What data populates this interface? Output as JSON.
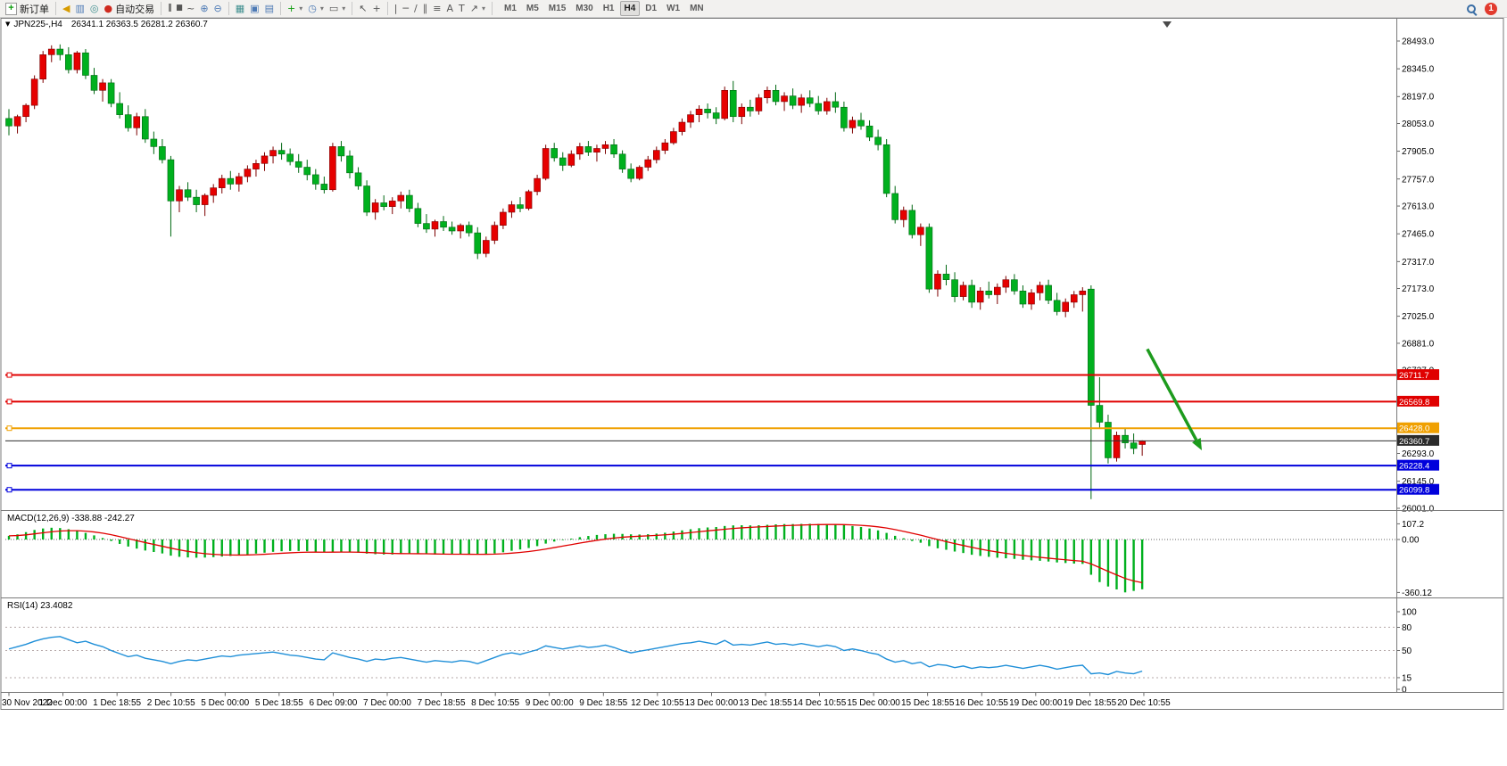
{
  "toolbar": {
    "new_order_label": "新订单",
    "auto_trading_label": "自动交易",
    "timeframes": [
      "M1",
      "M5",
      "M15",
      "M30",
      "H1",
      "H4",
      "D1",
      "W1",
      "MN"
    ],
    "active_timeframe": "H4",
    "notification_count": "1"
  },
  "icons": {
    "symbol_marker": "▼",
    "plus": "+",
    "speaker": "◀",
    "monitor": "▥",
    "headset": "◎",
    "autotrade_dot": "●",
    "bars": "|||",
    "candlesticks": "▮▮",
    "line_chart": "~",
    "zoom_in": "⊕",
    "zoom_out": "⊖",
    "tiles": "▦",
    "window": "▣",
    "window2": "▤",
    "indicator_plus": "+",
    "clock": "◷",
    "template": "▭",
    "cursor": "↖",
    "crosshair": "+",
    "vline": "|",
    "hline": "─",
    "trendline": "/",
    "channel": "∥",
    "fibonacci": "≡",
    "text": "A",
    "label": "T",
    "arrow_tool": "↗",
    "dropdown": "▾"
  },
  "chart": {
    "symbol_period": "JPN225-,H4",
    "ohlc": "26341.1 26363.5 26281.2 26360.7"
  },
  "indicators": {
    "macd": "MACD(12,26,9) -338.88 -242.27",
    "rsi": "RSI(14) 23.4082"
  },
  "chart_data": {
    "type": "candlestick",
    "symbol": "JPN225-",
    "timeframe": "H4",
    "last_ohlc": {
      "open": 26341.1,
      "high": 26363.5,
      "low": 26281.2,
      "close": 26360.7
    },
    "price_axis": {
      "max": 28493.0,
      "min": 26001.0,
      "ticks": [
        "28493.0",
        "28345.0",
        "28197.0",
        "28053.0",
        "27905.0",
        "27757.0",
        "27613.0",
        "27465.0",
        "27317.0",
        "27173.0",
        "27025.0",
        "26881.0",
        "26737.0",
        "26293.0",
        "26145.0",
        "26001.0"
      ]
    },
    "time_labels": [
      "30 Nov 2022",
      "1 Dec 00:00",
      "1 Dec 18:55",
      "2 Dec 10:55",
      "5 Dec 00:00",
      "5 Dec 18:55",
      "6 Dec 09:00",
      "7 Dec 00:00",
      "7 Dec 18:55",
      "8 Dec 10:55",
      "9 Dec 00:00",
      "9 Dec 18:55",
      "12 Dec 10:55",
      "13 Dec 00:00",
      "13 Dec 18:55",
      "14 Dec 10:55",
      "15 Dec 00:00",
      "15 Dec 18:55",
      "16 Dec 10:55",
      "19 Dec 00:00",
      "19 Dec 18:55",
      "20 Dec 10:55"
    ],
    "colors": {
      "up": "#e60000",
      "up_dark": "#7d0000",
      "down": "#00b01e",
      "down_dark": "#006812"
    },
    "candles": [
      [
        28080,
        28130,
        27990,
        28040
      ],
      [
        28040,
        28100,
        28000,
        28090
      ],
      [
        28090,
        28160,
        28060,
        28150
      ],
      [
        28150,
        28310,
        28130,
        28290
      ],
      [
        28290,
        28440,
        28270,
        28420
      ],
      [
        28420,
        28470,
        28380,
        28450
      ],
      [
        28450,
        28475,
        28390,
        28420
      ],
      [
        28420,
        28460,
        28320,
        28340
      ],
      [
        28340,
        28440,
        28320,
        28430
      ],
      [
        28430,
        28450,
        28290,
        28310
      ],
      [
        28310,
        28350,
        28210,
        28230
      ],
      [
        28230,
        28290,
        28170,
        28270
      ],
      [
        28270,
        28290,
        28140,
        28160
      ],
      [
        28160,
        28220,
        28080,
        28100
      ],
      [
        28100,
        28150,
        28010,
        28030
      ],
      [
        28030,
        28110,
        27990,
        28090
      ],
      [
        28090,
        28130,
        27950,
        27970
      ],
      [
        27970,
        28010,
        27890,
        27930
      ],
      [
        27930,
        27970,
        27840,
        27860
      ],
      [
        27860,
        27880,
        27450,
        27640
      ],
      [
        27640,
        27720,
        27580,
        27700
      ],
      [
        27700,
        27740,
        27640,
        27660
      ],
      [
        27660,
        27700,
        27580,
        27620
      ],
      [
        27620,
        27680,
        27560,
        27670
      ],
      [
        27670,
        27730,
        27630,
        27710
      ],
      [
        27710,
        27780,
        27680,
        27760
      ],
      [
        27760,
        27800,
        27700,
        27730
      ],
      [
        27730,
        27790,
        27690,
        27770
      ],
      [
        27770,
        27830,
        27740,
        27810
      ],
      [
        27810,
        27860,
        27770,
        27840
      ],
      [
        27840,
        27900,
        27800,
        27880
      ],
      [
        27880,
        27930,
        27840,
        27910
      ],
      [
        27910,
        27950,
        27860,
        27890
      ],
      [
        27890,
        27920,
        27830,
        27850
      ],
      [
        27850,
        27890,
        27790,
        27820
      ],
      [
        27820,
        27860,
        27750,
        27780
      ],
      [
        27780,
        27810,
        27700,
        27730
      ],
      [
        27730,
        27770,
        27680,
        27700
      ],
      [
        27700,
        27950,
        27690,
        27930
      ],
      [
        27930,
        27960,
        27850,
        27880
      ],
      [
        27880,
        27910,
        27760,
        27790
      ],
      [
        27790,
        27820,
        27700,
        27720
      ],
      [
        27720,
        27750,
        27560,
        27580
      ],
      [
        27580,
        27650,
        27540,
        27630
      ],
      [
        27630,
        27670,
        27590,
        27610
      ],
      [
        27610,
        27660,
        27570,
        27640
      ],
      [
        27640,
        27690,
        27600,
        27670
      ],
      [
        27670,
        27700,
        27580,
        27600
      ],
      [
        27600,
        27630,
        27500,
        27520
      ],
      [
        27520,
        27570,
        27470,
        27490
      ],
      [
        27490,
        27540,
        27450,
        27530
      ],
      [
        27530,
        27560,
        27480,
        27500
      ],
      [
        27500,
        27530,
        27460,
        27480
      ],
      [
        27480,
        27520,
        27440,
        27510
      ],
      [
        27510,
        27530,
        27450,
        27470
      ],
      [
        27470,
        27500,
        27330,
        27360
      ],
      [
        27360,
        27450,
        27340,
        27430
      ],
      [
        27430,
        27530,
        27410,
        27510
      ],
      [
        27510,
        27600,
        27490,
        27580
      ],
      [
        27580,
        27640,
        27550,
        27620
      ],
      [
        27620,
        27660,
        27580,
        27600
      ],
      [
        27600,
        27700,
        27590,
        27690
      ],
      [
        27690,
        27780,
        27670,
        27760
      ],
      [
        27760,
        27940,
        27750,
        27920
      ],
      [
        27920,
        27950,
        27850,
        27870
      ],
      [
        27870,
        27900,
        27800,
        27830
      ],
      [
        27830,
        27910,
        27820,
        27890
      ],
      [
        27890,
        27950,
        27860,
        27930
      ],
      [
        27930,
        27960,
        27880,
        27900
      ],
      [
        27900,
        27940,
        27850,
        27920
      ],
      [
        27920,
        27960,
        27890,
        27940
      ],
      [
        27940,
        27970,
        27870,
        27890
      ],
      [
        27890,
        27910,
        27790,
        27810
      ],
      [
        27810,
        27840,
        27740,
        27760
      ],
      [
        27760,
        27830,
        27750,
        27820
      ],
      [
        27820,
        27880,
        27800,
        27860
      ],
      [
        27860,
        27930,
        27840,
        27910
      ],
      [
        27910,
        27970,
        27890,
        27950
      ],
      [
        27950,
        28030,
        27940,
        28010
      ],
      [
        28010,
        28080,
        27990,
        28060
      ],
      [
        28060,
        28120,
        28030,
        28100
      ],
      [
        28100,
        28150,
        28060,
        28130
      ],
      [
        28130,
        28160,
        28080,
        28110
      ],
      [
        28110,
        28140,
        28050,
        28080
      ],
      [
        28080,
        28250,
        28070,
        28230
      ],
      [
        28230,
        28280,
        28060,
        28090
      ],
      [
        28090,
        28160,
        28050,
        28140
      ],
      [
        28140,
        28180,
        28090,
        28120
      ],
      [
        28120,
        28210,
        28100,
        28190
      ],
      [
        28190,
        28250,
        28160,
        28230
      ],
      [
        28230,
        28260,
        28150,
        28170
      ],
      [
        28170,
        28220,
        28120,
        28200
      ],
      [
        28200,
        28240,
        28130,
        28150
      ],
      [
        28150,
        28210,
        28110,
        28190
      ],
      [
        28190,
        28230,
        28140,
        28160
      ],
      [
        28160,
        28200,
        28100,
        28120
      ],
      [
        28120,
        28190,
        28100,
        28170
      ],
      [
        28170,
        28220,
        28110,
        28140
      ],
      [
        28140,
        28170,
        28010,
        28030
      ],
      [
        28030,
        28090,
        28000,
        28070
      ],
      [
        28070,
        28110,
        28020,
        28040
      ],
      [
        28040,
        28070,
        27960,
        27980
      ],
      [
        27980,
        28020,
        27910,
        27940
      ],
      [
        27940,
        27970,
        27660,
        27680
      ],
      [
        27680,
        27720,
        27520,
        27540
      ],
      [
        27540,
        27610,
        27500,
        27590
      ],
      [
        27590,
        27620,
        27440,
        27460
      ],
      [
        27460,
        27520,
        27400,
        27500
      ],
      [
        27500,
        27520,
        27150,
        27170
      ],
      [
        27170,
        27270,
        27130,
        27250
      ],
      [
        27250,
        27300,
        27190,
        27220
      ],
      [
        27220,
        27260,
        27100,
        27130
      ],
      [
        27130,
        27210,
        27110,
        27190
      ],
      [
        27190,
        27220,
        27070,
        27100
      ],
      [
        27100,
        27180,
        27060,
        27160
      ],
      [
        27160,
        27210,
        27120,
        27140
      ],
      [
        27140,
        27200,
        27090,
        27180
      ],
      [
        27180,
        27240,
        27150,
        27220
      ],
      [
        27220,
        27250,
        27140,
        27160
      ],
      [
        27160,
        27190,
        27070,
        27090
      ],
      [
        27090,
        27170,
        27060,
        27150
      ],
      [
        27150,
        27210,
        27110,
        27190
      ],
      [
        27190,
        27220,
        27090,
        27110
      ],
      [
        27110,
        27150,
        27030,
        27050
      ],
      [
        27050,
        27120,
        27020,
        27100
      ],
      [
        27100,
        27160,
        27070,
        27140
      ],
      [
        27140,
        27180,
        27050,
        27160
      ],
      [
        27170,
        27190,
        26050,
        26550
      ],
      [
        26550,
        26700,
        26430,
        26460
      ],
      [
        26460,
        26500,
        26240,
        26270
      ],
      [
        26270,
        26410,
        26250,
        26390
      ],
      [
        26390,
        26430,
        26320,
        26350
      ],
      [
        26350,
        26400,
        26290,
        26320
      ],
      [
        26341.1,
        26363.5,
        26281.2,
        26360.7
      ]
    ],
    "hlines": [
      {
        "price": 26711.7,
        "label": "26711.7",
        "color": "#e00000",
        "width": 2
      },
      {
        "price": 26569.8,
        "label": "26569.8",
        "color": "#e00000",
        "width": 2
      },
      {
        "price": 26428.0,
        "label": "26428.0",
        "color": "#f0a000",
        "width": 2
      },
      {
        "price": 26360.7,
        "label": "26360.7",
        "color": "#2e2e2e",
        "width": 1,
        "type": "price"
      },
      {
        "price": 26228.4,
        "label": "26228.4",
        "color": "#0000dc",
        "width": 2
      },
      {
        "price": 26099.8,
        "label": "26099.8",
        "color": "#0000dc",
        "width": 2
      }
    ],
    "arrow": {
      "color": "#1d9b1d",
      "width": 3.5,
      "from": {
        "index": 133.6,
        "price": 26850
      },
      "to": {
        "index": 140.0,
        "price": 26310
      }
    },
    "macd": {
      "params": "12,26,9",
      "value": -338.88,
      "signal": -242.27,
      "axis_ticks": [
        "107.2",
        "0.00",
        "-360.12"
      ],
      "values": [
        25,
        35,
        50,
        65,
        75,
        80,
        78,
        70,
        60,
        45,
        28,
        10,
        -10,
        -30,
        -48,
        -62,
        -75,
        -85,
        -95,
        -110,
        -118,
        -122,
        -124,
        -123,
        -120,
        -116,
        -112,
        -107,
        -102,
        -96,
        -90,
        -84,
        -80,
        -78,
        -78,
        -80,
        -84,
        -88,
        -85,
        -84,
        -86,
        -90,
        -96,
        -100,
        -102,
        -102,
        -100,
        -98,
        -98,
        -100,
        -102,
        -103,
        -103,
        -102,
        -101,
        -102,
        -100,
        -95,
        -87,
        -77,
        -68,
        -58,
        -45,
        -28,
        -14,
        -4,
        6,
        16,
        24,
        31,
        36,
        39,
        38,
        35,
        34,
        36,
        40,
        46,
        54,
        62,
        70,
        77,
        82,
        85,
        92,
        96,
        97,
        96,
        97,
        100,
        103,
        105,
        105,
        106,
        107,
        106,
        105,
        103,
        98,
        92,
        85,
        75,
        62,
        45,
        25,
        8,
        -10,
        -22,
        -45,
        -60,
        -70,
        -82,
        -92,
        -104,
        -112,
        -118,
        -124,
        -128,
        -132,
        -138,
        -142,
        -145,
        -150,
        -156,
        -160,
        -164,
        -166,
        -240,
        -290,
        -320,
        -340,
        -360,
        -350,
        -338.88
      ]
    },
    "rsi": {
      "period": 14,
      "value": 23.4082,
      "levels": [
        80,
        50,
        15
      ],
      "axis_ticks": [
        "100",
        "80",
        "50",
        "15",
        "0"
      ],
      "values": [
        52,
        55,
        58,
        62,
        65,
        67,
        68,
        64,
        60,
        62,
        58,
        55,
        50,
        46,
        42,
        44,
        40,
        38,
        36,
        33,
        36,
        38,
        37,
        39,
        41,
        43,
        42,
        44,
        45,
        46,
        47,
        48,
        46,
        44,
        43,
        41,
        39,
        38,
        47,
        44,
        41,
        39,
        36,
        39,
        38,
        40,
        41,
        39,
        37,
        35,
        37,
        36,
        35,
        37,
        36,
        33,
        37,
        41,
        45,
        47,
        45,
        48,
        51,
        56,
        54,
        52,
        54,
        56,
        54,
        55,
        57,
        54,
        50,
        47,
        49,
        51,
        53,
        55,
        57,
        59,
        60,
        62,
        60,
        58,
        63,
        57,
        58,
        57,
        59,
        61,
        58,
        59,
        57,
        59,
        57,
        55,
        57,
        55,
        50,
        52,
        50,
        47,
        45,
        39,
        35,
        37,
        33,
        35,
        29,
        32,
        31,
        28,
        30,
        27,
        29,
        28,
        29,
        31,
        29,
        27,
        29,
        31,
        29,
        26,
        28,
        30,
        31,
        20,
        21,
        19,
        23,
        21,
        20,
        23.4
      ]
    }
  }
}
